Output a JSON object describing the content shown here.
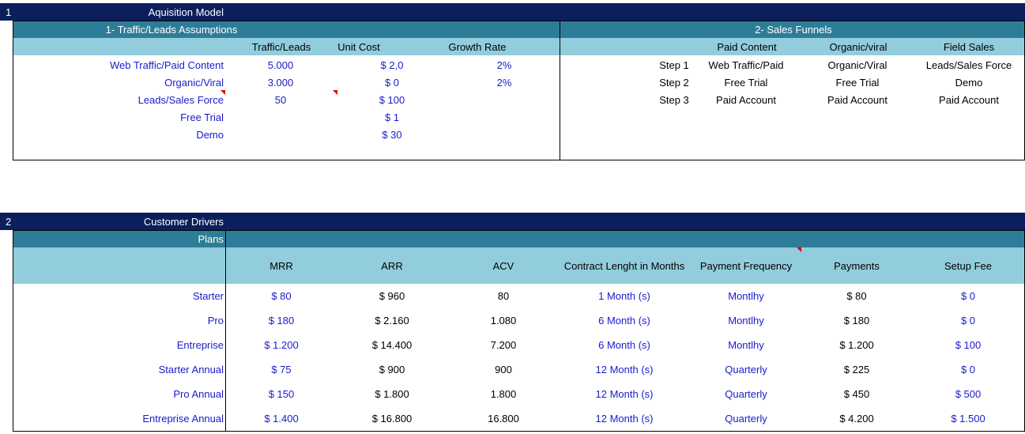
{
  "section1": {
    "number": "1",
    "title": "Aquisition Model",
    "traffic": {
      "title": "1- Traffic/Leads Assumptions",
      "headers": [
        "Traffic/Leads",
        "Unit Cost",
        "Growth Rate"
      ],
      "rows": [
        {
          "label": "Web Traffic/Paid Content",
          "traffic": "5.000",
          "cost": "$ 2,0",
          "growth": "2%"
        },
        {
          "label": "Organic/Viral",
          "traffic": "3.000",
          "cost": "$ 0",
          "growth": "2%"
        },
        {
          "label": "Leads/Sales Force",
          "traffic": "50",
          "cost": "$ 100",
          "growth": ""
        },
        {
          "label": "Free Trial",
          "traffic": "",
          "cost": "$ 1",
          "growth": ""
        },
        {
          "label": "Demo",
          "traffic": "",
          "cost": "$ 30",
          "growth": ""
        }
      ]
    },
    "funnels": {
      "title": "2- Sales Funnels",
      "headers": [
        "Paid Content",
        "Organic/viral",
        "Field Sales"
      ],
      "rows": [
        {
          "step": "Step 1",
          "paid": "Web Traffic/Paid",
          "organic": "Organic/Viral",
          "field": "Leads/Sales Force"
        },
        {
          "step": "Step 2",
          "paid": "Free Trial",
          "organic": "Free Trial",
          "field": "Demo"
        },
        {
          "step": "Step 3",
          "paid": "Paid Account",
          "organic": "Paid Account",
          "field": "Paid Account"
        }
      ]
    }
  },
  "section2": {
    "number": "2",
    "title": "Customer Drivers",
    "plans_label": "Plans",
    "headers": [
      "MRR",
      "ARR",
      "ACV",
      "Contract Lenght in Months",
      "Payment Frequency",
      "Payments",
      "Setup Fee"
    ],
    "rows": [
      {
        "plan": "Starter",
        "mrr": "$ 80",
        "arr": "$ 960",
        "acv": "80",
        "contract": "1 Month (s)",
        "freq": "Montlhy",
        "payments": "$ 80",
        "setup": "$ 0"
      },
      {
        "plan": "Pro",
        "mrr": "$ 180",
        "arr": "$ 2.160",
        "acv": "1.080",
        "contract": "6 Month (s)",
        "freq": "Montlhy",
        "payments": "$ 180",
        "setup": "$ 0"
      },
      {
        "plan": "Entreprise",
        "mrr": "$ 1.200",
        "arr": "$ 14.400",
        "acv": "7.200",
        "contract": "6 Month (s)",
        "freq": "Montlhy",
        "payments": "$ 1.200",
        "setup": "$ 100"
      },
      {
        "plan": "Starter Annual",
        "mrr": "$ 75",
        "arr": "$ 900",
        "acv": "900",
        "contract": "12 Month (s)",
        "freq": "Quarterly",
        "payments": "$ 225",
        "setup": "$ 0"
      },
      {
        "plan": "Pro Annual",
        "mrr": "$ 150",
        "arr": "$ 1.800",
        "acv": "1.800",
        "contract": "12 Month (s)",
        "freq": "Quarterly",
        "payments": "$ 450",
        "setup": "$ 500"
      },
      {
        "plan": "Entreprise Annual",
        "mrr": "$ 1.400",
        "arr": "$ 16.800",
        "acv": "16.800",
        "contract": "12 Month (s)",
        "freq": "Quarterly",
        "payments": "$ 4.200",
        "setup": "$ 1.500"
      }
    ]
  },
  "colors": {
    "navy": "#0b1f5c",
    "teal": "#2e7d98",
    "light": "#92cddd",
    "input_blue": "#1a1acc",
    "comment_red": "#e00000"
  }
}
